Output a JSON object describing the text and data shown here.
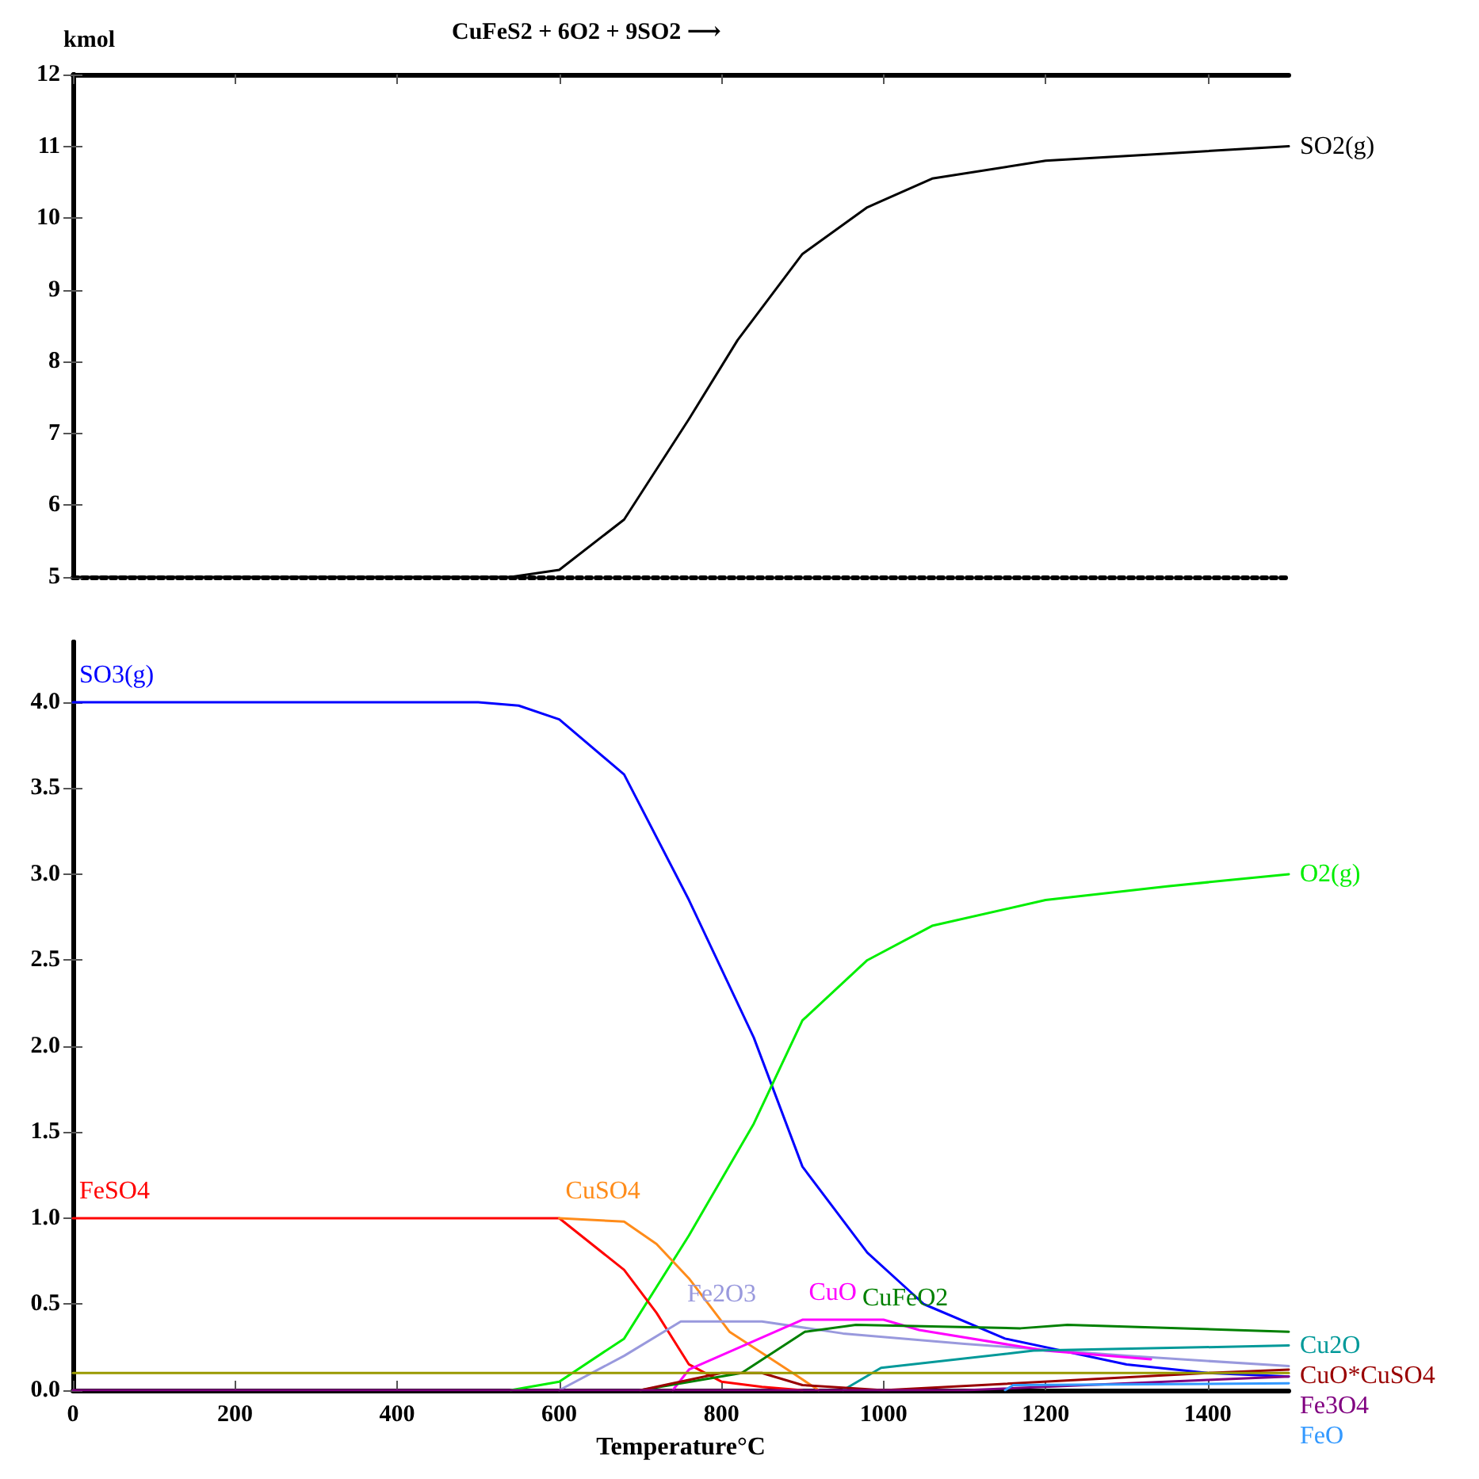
{
  "chart_data": [
    {
      "type": "line",
      "title": "CuFeS2 + 6O2 + 9SO2 ⟶",
      "ylabel": "kmol",
      "xlim": [
        0,
        1500
      ],
      "xticks": [
        0,
        200,
        400,
        600,
        800,
        1000,
        1200,
        1400
      ],
      "ylim": [
        5,
        12
      ],
      "yticks": [
        5,
        6,
        7,
        8,
        9,
        10,
        11,
        12
      ],
      "tick_labels": "y",
      "marker": "none",
      "line_style": "solid",
      "series": [
        {
          "name": "SO2(g)",
          "color": "#000000",
          "x": [
            0,
            540,
            600,
            680,
            760,
            820,
            900,
            980,
            1060,
            1200,
            1350,
            1500
          ],
          "values": [
            5,
            5,
            5.1,
            5.8,
            7.2,
            8.3,
            9.5,
            10.15,
            10.55,
            10.8,
            10.9,
            11.0
          ]
        }
      ]
    },
    {
      "type": "line",
      "xlabel": "Temperature°C",
      "xlim": [
        0,
        1500
      ],
      "xticks": [
        0,
        200,
        400,
        600,
        800,
        1000,
        1200,
        1400
      ],
      "ylim": [
        0,
        4.35
      ],
      "yticks": [
        {
          "value": 0,
          "label": "0.0"
        },
        0.5,
        {
          "value": 1,
          "label": "1.0"
        },
        1.5,
        {
          "value": 2,
          "label": "2.0"
        },
        2.5,
        {
          "value": 3,
          "label": "3.0"
        },
        3.5,
        {
          "value": 4,
          "label": "4.0"
        }
      ],
      "marker": "none",
      "line_style": "solid",
      "series": [
        {
          "name": "SO3(g)",
          "color": "#0000ff",
          "x": [
            0,
            500,
            550,
            600,
            680,
            760,
            840,
            900,
            980,
            1050,
            1150,
            1300,
            1400,
            1500
          ],
          "values": [
            4,
            4,
            3.98,
            3.9,
            3.58,
            2.85,
            2.05,
            1.3,
            0.8,
            0.5,
            0.3,
            0.15,
            0.1,
            0.08
          ]
        },
        {
          "name": "O2(g)",
          "color": "#00ee00",
          "x": [
            540,
            600,
            680,
            760,
            840,
            900,
            980,
            1060,
            1200,
            1350,
            1500
          ],
          "values": [
            0,
            0.05,
            0.3,
            0.9,
            1.55,
            2.15,
            2.5,
            2.7,
            2.85,
            2.93,
            3.0
          ]
        },
        {
          "name": "FeSO4",
          "color": "#ff0000",
          "x": [
            0,
            600,
            680,
            720,
            760,
            800,
            850,
            900
          ],
          "values": [
            1,
            1,
            0.7,
            0.45,
            0.15,
            0.05,
            0.02,
            0
          ]
        },
        {
          "name": "CuSO4",
          "color": "#ff8c1a",
          "x": [
            600,
            680,
            720,
            760,
            810,
            888,
            920
          ],
          "values": [
            1,
            0.98,
            0.85,
            0.65,
            0.34,
            0.1,
            0
          ]
        },
        {
          "name": "Fe2O3",
          "color": "#9999dd",
          "x": [
            600,
            680,
            750,
            850,
            950,
            1100,
            1300,
            1500
          ],
          "values": [
            0,
            0.2,
            0.4,
            0.4,
            0.33,
            0.27,
            0.2,
            0.14
          ]
        },
        {
          "name": "CuO",
          "color": "#ff00ff",
          "x": [
            740,
            760,
            900,
            1000,
            1044,
            1200,
            1330
          ],
          "values": [
            0,
            0.12,
            0.41,
            0.41,
            0.35,
            0.23,
            0.18
          ]
        },
        {
          "name": "CuFeO2",
          "color": "#008000",
          "x": [
            700,
            825,
            903,
            966,
            1169,
            1227,
            1500
          ],
          "values": [
            0,
            0.1,
            0.34,
            0.38,
            0.36,
            0.38,
            0.34
          ]
        },
        {
          "name": "Cu2O",
          "color": "#009999",
          "x": [
            950,
            997,
            1185,
            1500
          ],
          "values": [
            0,
            0.13,
            0.23,
            0.26
          ]
        },
        {
          "name": "CuO*CuSO4",
          "color": "#990000",
          "x": [
            700,
            800,
            850,
            900,
            1000,
            1400,
            1500
          ],
          "values": [
            0,
            0.1,
            0.1,
            0.03,
            0,
            0.1,
            0.12
          ]
        },
        {
          "name": "Fe3O4",
          "color": "#800080",
          "x": [
            0,
            1100,
            1400,
            1500
          ],
          "values": [
            0,
            0,
            0.06,
            0.08
          ]
        },
        {
          "name": "FeO",
          "color": "#3399ff",
          "x": [
            1150,
            1160,
            1500
          ],
          "values": [
            0,
            0.03,
            0.04
          ]
        },
        {
          "color": "#999900",
          "x": [
            0,
            1500
          ],
          "values": [
            0.1,
            0.1
          ]
        }
      ]
    }
  ]
}
